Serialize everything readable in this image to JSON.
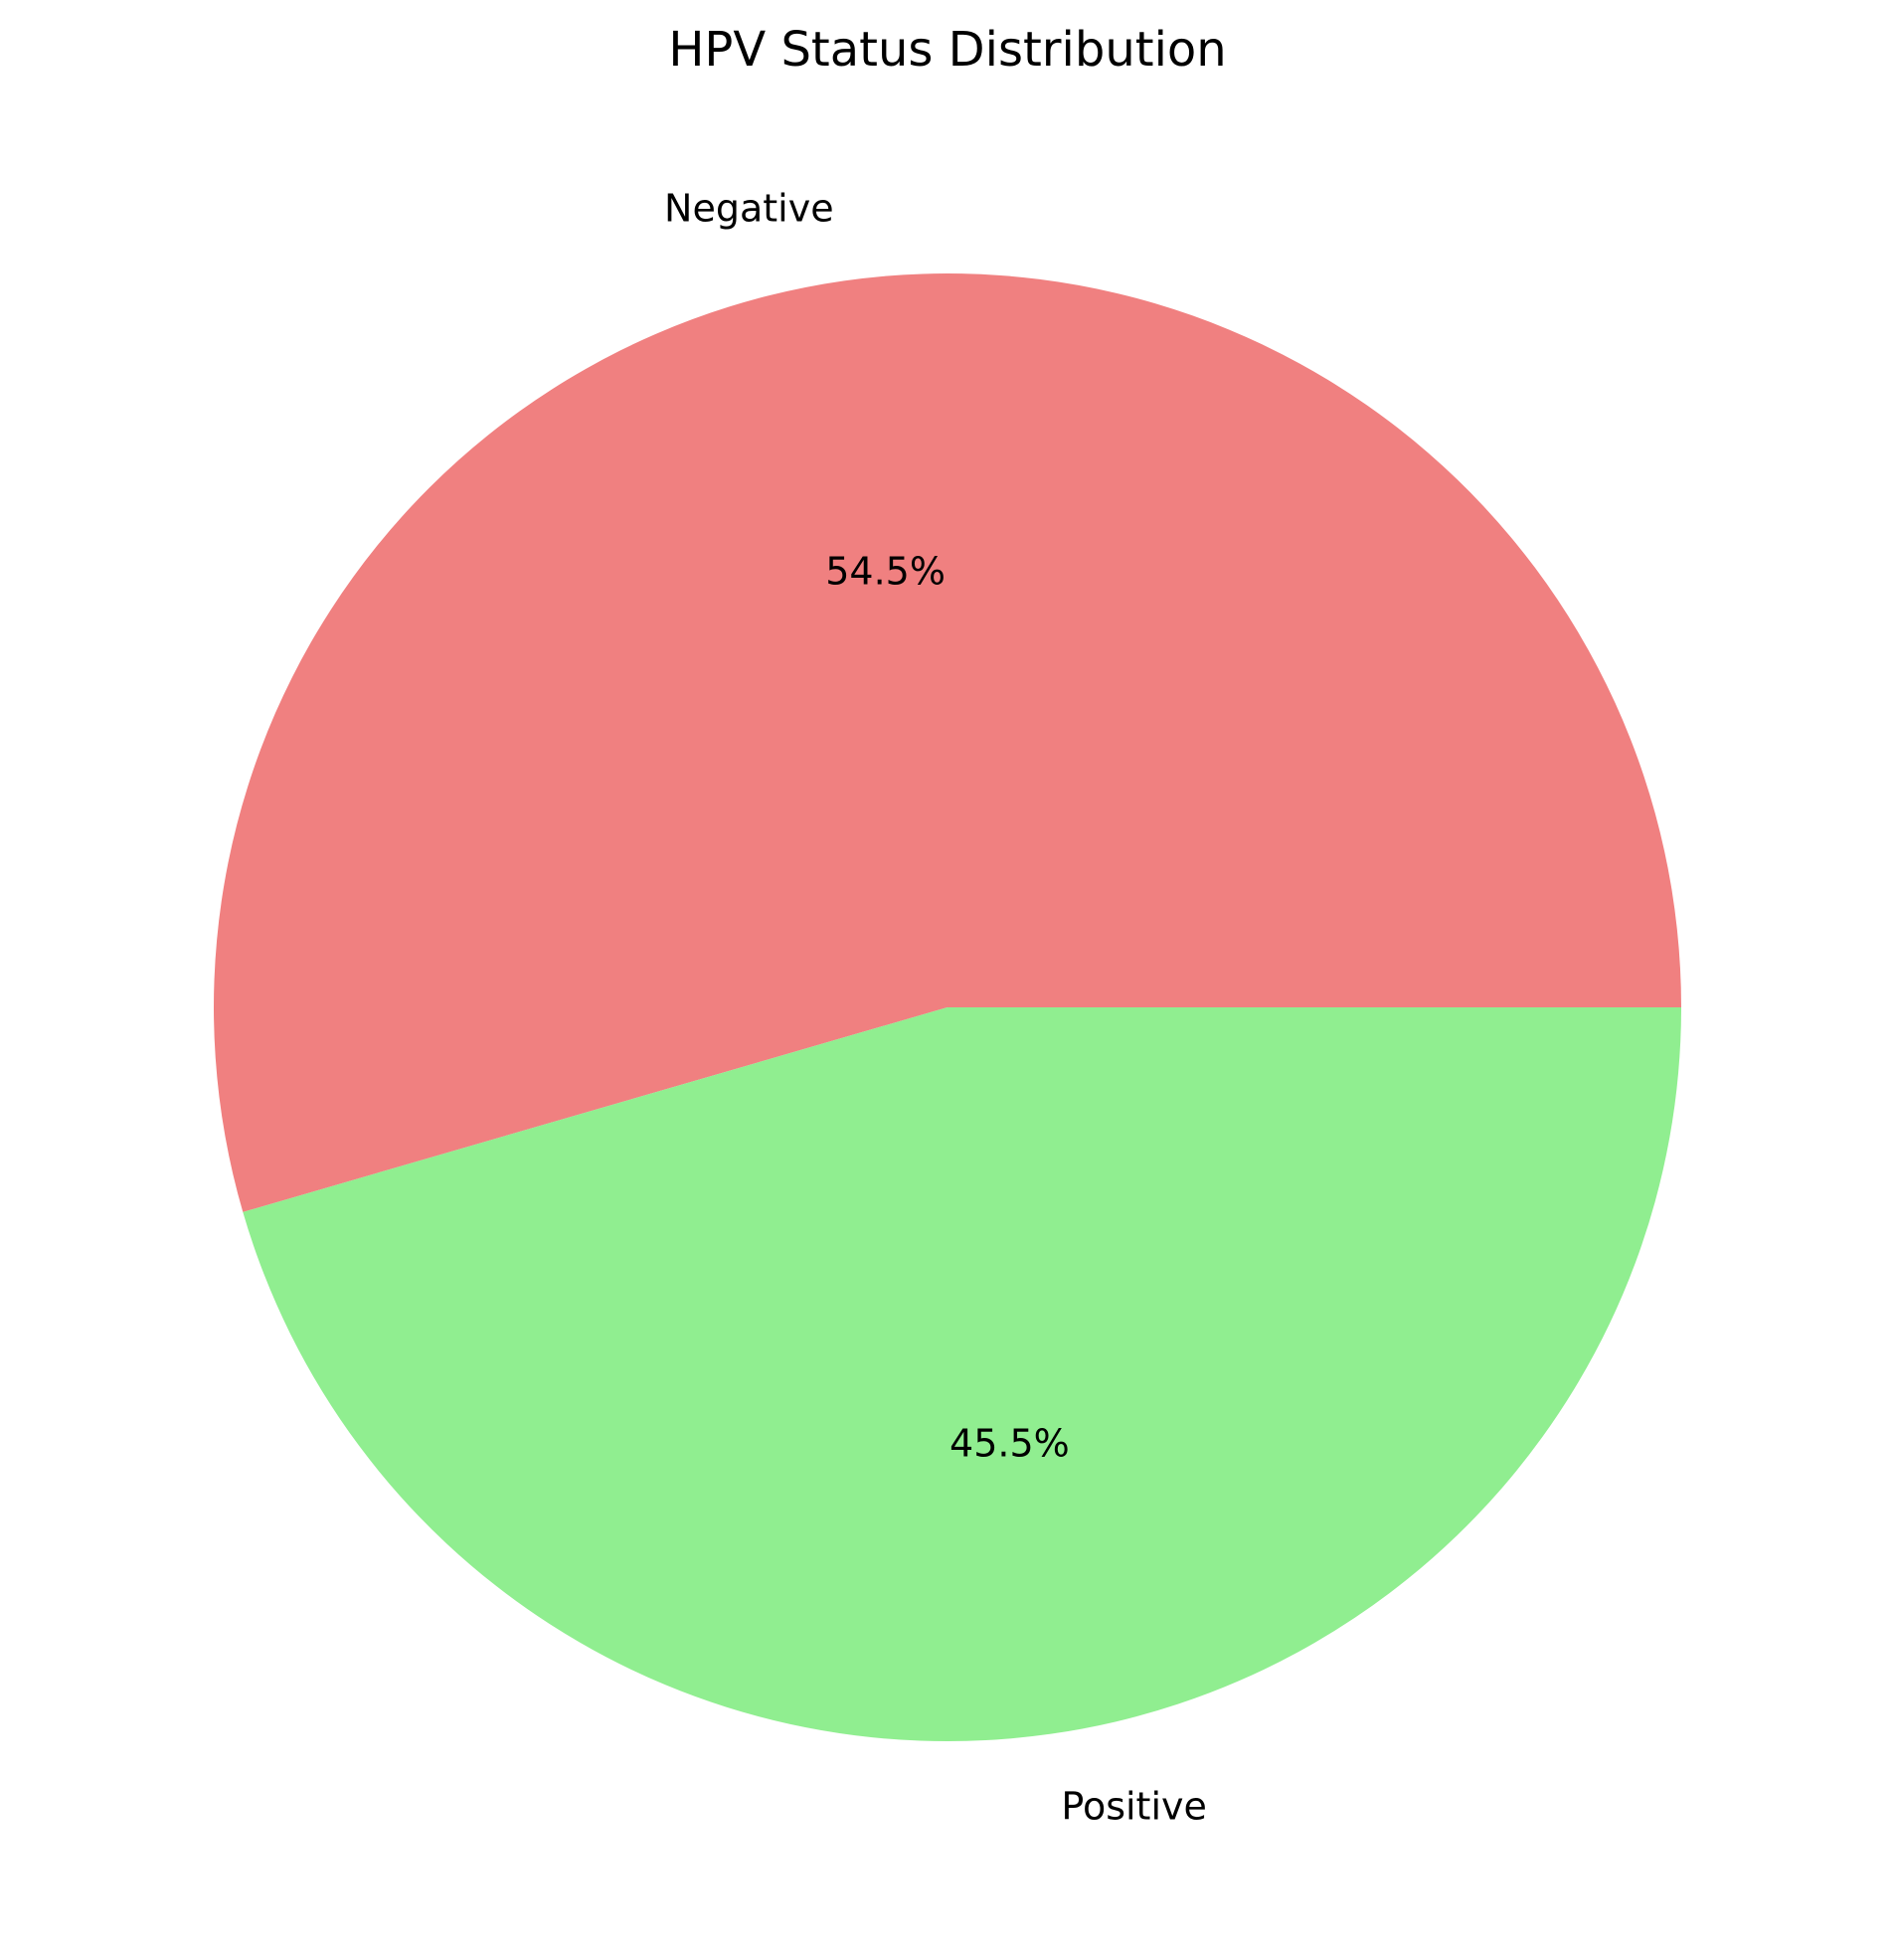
{
  "chart_data": {
    "type": "pie",
    "title": "HPV Status Distribution",
    "start_angle": "0° (3 o'clock), counter-clockwise",
    "slices": [
      {
        "label": "Negative",
        "percent": 54.5,
        "percent_label": "54.5%",
        "color": "#f08080"
      },
      {
        "label": "Positive",
        "percent": 45.5,
        "percent_label": "45.5%",
        "color": "#90ee90"
      }
    ]
  }
}
